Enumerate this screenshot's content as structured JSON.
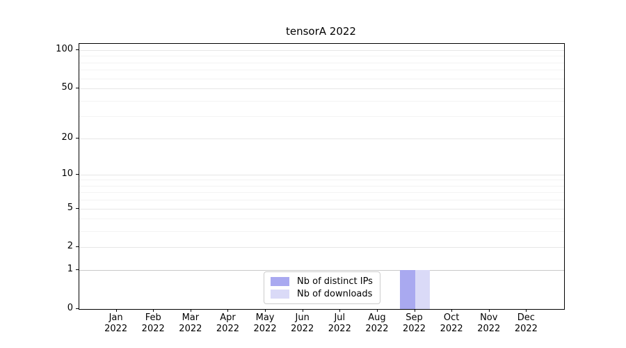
{
  "title": "tensorA 2022",
  "chart_data": {
    "type": "bar",
    "title": "tensorA 2022",
    "xlabel": "",
    "ylabel": "",
    "categories": [
      "Jan 2022",
      "Feb 2022",
      "Mar 2022",
      "Apr 2022",
      "May 2022",
      "Jun 2022",
      "Jul 2022",
      "Aug 2022",
      "Sep 2022",
      "Oct 2022",
      "Nov 2022",
      "Dec 2022"
    ],
    "series": [
      {
        "name": "Nb of distinct IPs",
        "color": "#a9a9f0",
        "values": [
          0,
          0,
          0,
          0,
          0,
          0,
          0,
          0,
          1,
          0,
          0,
          0
        ]
      },
      {
        "name": "Nb of downloads",
        "color": "#dadaf7",
        "values": [
          0,
          0,
          0,
          0,
          0,
          0,
          0,
          0,
          1,
          0,
          0,
          0
        ]
      }
    ],
    "yscale": "log1p",
    "yticks": [
      0,
      1,
      2,
      5,
      10,
      20,
      50,
      100
    ],
    "minor_yticks": [
      3,
      4,
      6,
      7,
      8,
      9,
      30,
      40,
      60,
      70,
      80,
      90
    ],
    "ylim": [
      0,
      112
    ],
    "grid": true,
    "legend_position": "lower center"
  },
  "colors": {
    "grid_major": "#e6e6e6",
    "grid_minor": "#f3f3f3",
    "grid_unit_line": "#c9c9c9",
    "axis": "#000000",
    "legend_border": "#cccccc"
  }
}
